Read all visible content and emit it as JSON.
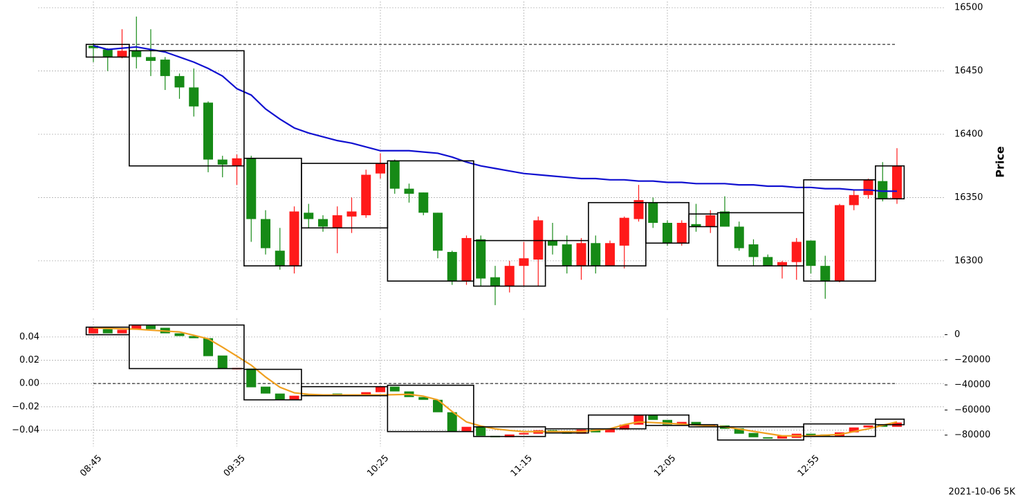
{
  "chart_data": [
    {
      "type": "candlestick",
      "ylabel": "Price",
      "ylim": [
        16260,
        16505
      ],
      "yticks": [
        16300,
        16350,
        16400,
        16450,
        16500
      ],
      "grid": true,
      "up_color": "#ff1a1a",
      "down_color": "#168a16",
      "open": [
        16470,
        16467,
        16461,
        16466,
        16461,
        16459,
        16446,
        16437,
        16425,
        16380,
        16375,
        16381,
        16333,
        16308,
        16296,
        16338,
        16333,
        16326,
        16335,
        16336,
        16369,
        16379,
        16357,
        16354,
        16338,
        16307,
        16284,
        16317,
        16287,
        16280,
        16296,
        16301,
        16316,
        16313,
        16296,
        16314,
        16296,
        16312,
        16333,
        16346,
        16330,
        16314,
        16329,
        16327,
        16339,
        16327,
        16313,
        16303,
        16296,
        16299,
        16316,
        16296,
        16284,
        16344,
        16352,
        16363,
        16349
      ],
      "high": [
        16472,
        16468,
        16483,
        16493,
        16483,
        16461,
        16448,
        16452,
        16426,
        16383,
        16384,
        16383,
        16340,
        16326,
        16343,
        16345,
        16336,
        16343,
        16350,
        16372,
        16385,
        16380,
        16361,
        16354,
        16338,
        16308,
        16320,
        16320,
        16296,
        16300,
        16315,
        16335,
        16330,
        16320,
        16318,
        16320,
        16316,
        16335,
        16360,
        16350,
        16332,
        16332,
        16345,
        16340,
        16351,
        16331,
        16317,
        16305,
        16300,
        16318,
        16316,
        16304,
        16345,
        16356,
        16365,
        16378,
        16389
      ],
      "low": [
        16457,
        16450,
        16460,
        16452,
        16446,
        16435,
        16428,
        16414,
        16370,
        16366,
        16360,
        16315,
        16305,
        16293,
        16290,
        16326,
        16323,
        16306,
        16322,
        16334,
        16365,
        16353,
        16346,
        16336,
        16302,
        16281,
        16281,
        16280,
        16265,
        16275,
        16280,
        16280,
        16305,
        16290,
        16285,
        16290,
        16296,
        16294,
        16331,
        16326,
        16312,
        16312,
        16323,
        16322,
        16327,
        16308,
        16296,
        16296,
        16286,
        16285,
        16290,
        16270,
        16283,
        16340,
        16349,
        16347,
        16345
      ],
      "close": [
        16468,
        16461,
        16466,
        16461,
        16458,
        16446,
        16437,
        16422,
        16380,
        16376,
        16381,
        16333,
        16310,
        16296,
        16339,
        16333,
        16327,
        16336,
        16339,
        16368,
        16377,
        16357,
        16353,
        16338,
        16308,
        16284,
        16318,
        16286,
        16280,
        16296,
        16302,
        16332,
        16312,
        16296,
        16314,
        16296,
        16314,
        16334,
        16348,
        16330,
        16314,
        16330,
        16327,
        16336,
        16327,
        16310,
        16303,
        16296,
        16299,
        16315,
        16296,
        16284,
        16344,
        16352,
        16364,
        16349,
        16375
      ],
      "line": {
        "color": "#1010d0",
        "values": [
          16470,
          16467,
          16468,
          16469,
          16467,
          16465,
          16461,
          16457,
          16452,
          16446,
          16436,
          16431,
          16420,
          16412,
          16405,
          16401,
          16398,
          16395,
          16393,
          16390,
          16387,
          16387,
          16387,
          16386,
          16385,
          16382,
          16378,
          16375,
          16373,
          16371,
          16369,
          16368,
          16367,
          16366,
          16365,
          16365,
          16364,
          16364,
          16363,
          16363,
          16362,
          16362,
          16361,
          16361,
          16361,
          16360,
          16360,
          16359,
          16359,
          16358,
          16358,
          16357,
          16357,
          16356,
          16356,
          16355,
          16355
        ]
      },
      "hline": 16471,
      "boxes": [
        {
          "start": 0,
          "end": 2,
          "high": 16471,
          "low": 16461
        },
        {
          "start": 3,
          "end": 10,
          "high": 16466,
          "low": 16375
        },
        {
          "start": 11,
          "end": 14,
          "high": 16381,
          "low": 16296
        },
        {
          "start": 15,
          "end": 20,
          "high": 16377,
          "low": 16326
        },
        {
          "start": 21,
          "end": 26,
          "high": 16379,
          "low": 16284
        },
        {
          "start": 27,
          "end": 31,
          "high": 16316,
          "low": 16280
        },
        {
          "start": 32,
          "end": 34,
          "high": 16316,
          "low": 16296
        },
        {
          "start": 35,
          "end": 38,
          "high": 16346,
          "low": 16296
        },
        {
          "start": 39,
          "end": 41,
          "high": 16346,
          "low": 16314
        },
        {
          "start": 42,
          "end": 43,
          "high": 16337,
          "low": 16327
        },
        {
          "start": 44,
          "end": 49,
          "high": 16338,
          "low": 16296
        },
        {
          "start": 50,
          "end": 54,
          "high": 16364,
          "low": 16284
        },
        {
          "start": 55,
          "end": 56,
          "high": 16375,
          "low": 16349
        }
      ]
    },
    {
      "type": "candlestick",
      "categories": [
        "08:45",
        null,
        null,
        null,
        null,
        null,
        null,
        null,
        null,
        null,
        "09:35",
        null,
        null,
        null,
        null,
        null,
        null,
        null,
        null,
        null,
        "10:25",
        null,
        null,
        null,
        null,
        null,
        null,
        null,
        null,
        null,
        "11:15",
        null,
        null,
        null,
        null,
        null,
        null,
        null,
        null,
        null,
        "12:05",
        null,
        null,
        null,
        null,
        null,
        null,
        null,
        null,
        null,
        "12:55",
        null,
        null,
        null,
        null,
        null,
        null
      ],
      "ylim": [
        -0.054,
        0.056
      ],
      "yticks": [
        0.04,
        0.02,
        {
          "value": 0,
          "label": "0.00"
        },
        {
          "value": -0.02,
          "label": "−0.02"
        },
        {
          "value": -0.04,
          "label": "−0.04"
        }
      ],
      "y2lim": [
        -89000,
        13000
      ],
      "y2ticks": [
        0,
        {
          "value": -20000,
          "label": "−20000"
        },
        {
          "value": -40000,
          "label": "−40000"
        },
        {
          "value": -60000,
          "label": "−60000"
        },
        {
          "value": -80000,
          "label": "−80000"
        }
      ],
      "grid": true,
      "up_color": "#ff1a1a",
      "down_color": "#168a16",
      "open": [
        1000,
        4400,
        1100,
        3900,
        7200,
        5500,
        1100,
        -1100,
        -2800,
        -16600,
        -27600,
        -27000,
        -41400,
        -46900,
        -51900,
        -48000,
        -48600,
        -46900,
        -48600,
        -48000,
        -45800,
        -41400,
        -45200,
        -49700,
        -51900,
        -61800,
        -77200,
        -73400,
        -80600,
        -81700,
        -79500,
        -78900,
        -76100,
        -77200,
        -78900,
        -75600,
        -77800,
        -75600,
        -71700,
        -64000,
        -67900,
        -71700,
        -69500,
        -73400,
        -72300,
        -74500,
        -78300,
        -81700,
        -82800,
        -82200,
        -78900,
        -79500,
        -81100,
        -77800,
        -73900,
        -71700,
        -73400
      ],
      "close": [
        5500,
        1100,
        3900,
        7200,
        4400,
        1100,
        -1100,
        -2800,
        -17100,
        -27000,
        -26500,
        -41900,
        -46900,
        -51900,
        -48600,
        -48600,
        -47500,
        -48000,
        -47500,
        -45800,
        -41400,
        -45200,
        -49700,
        -51900,
        -61800,
        -77200,
        -73400,
        -80600,
        -81700,
        -79500,
        -78300,
        -76100,
        -77200,
        -78900,
        -75600,
        -77800,
        -75000,
        -71700,
        -64000,
        -67900,
        -71700,
        -69500,
        -72300,
        -71700,
        -75000,
        -78900,
        -81700,
        -82800,
        -80600,
        -78900,
        -80600,
        -81100,
        -77800,
        -73900,
        -72300,
        -73400,
        -70000
      ],
      "line": {
        "color": "#f0a020",
        "axis": "y2",
        "values": [
          5500,
          5000,
          4700,
          4400,
          3600,
          2900,
          2200,
          -500,
          -3300,
          -10000,
          -17100,
          -24300,
          -33700,
          -41900,
          -46300,
          -47500,
          -48000,
          -48000,
          -48000,
          -48000,
          -48000,
          -47800,
          -47500,
          -49000,
          -51900,
          -61200,
          -69500,
          -72800,
          -75000,
          -76300,
          -77200,
          -77200,
          -77200,
          -77200,
          -77200,
          -76100,
          -75000,
          -71700,
          -69500,
          -70000,
          -70600,
          -71300,
          -72000,
          -72700,
          -73400,
          -75200,
          -77000,
          -78800,
          -80600,
          -80600,
          -80600,
          -80000,
          -79500,
          -77200,
          -75000,
          -72200,
          -69500
        ]
      },
      "hline": 0,
      "boxes": [
        {
          "start": 0,
          "end": 2,
          "high": 6000,
          "low": 0
        },
        {
          "start": 3,
          "end": 10,
          "high": 7700,
          "low": -27000
        },
        {
          "start": 11,
          "end": 14,
          "high": -27600,
          "low": -51900
        },
        {
          "start": 15,
          "end": 20,
          "high": -41400,
          "low": -48600
        },
        {
          "start": 21,
          "end": 26,
          "high": -40300,
          "low": -77200
        },
        {
          "start": 27,
          "end": 31,
          "high": -73400,
          "low": -81100
        },
        {
          "start": 32,
          "end": 34,
          "high": -75000,
          "low": -78300
        },
        {
          "start": 35,
          "end": 38,
          "high": -64000,
          "low": -75000
        },
        {
          "start": 39,
          "end": 41,
          "high": -64000,
          "low": -72300
        },
        {
          "start": 42,
          "end": 43,
          "high": -71700,
          "low": -73400
        },
        {
          "start": 44,
          "end": 49,
          "high": -73400,
          "low": -83900
        },
        {
          "start": 50,
          "end": 54,
          "high": -71100,
          "low": -81100
        },
        {
          "start": 55,
          "end": 56,
          "high": -67300,
          "low": -71700
        }
      ]
    }
  ],
  "footer": "2021-10-06 5K"
}
